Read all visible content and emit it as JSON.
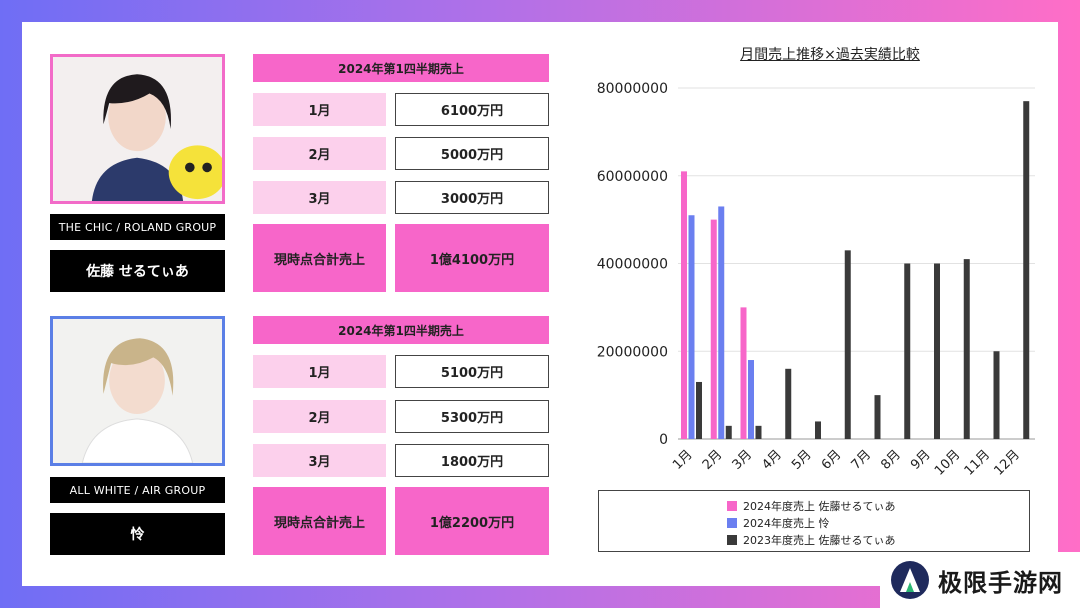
{
  "people": [
    {
      "group": "THE CHIC / ROLAND GROUP",
      "name": "佐藤 せるてぃあ",
      "quarter_header": "2024年第1四半期売上",
      "months": [
        {
          "label": "1月",
          "value": "6100万円"
        },
        {
          "label": "2月",
          "value": "5000万円"
        },
        {
          "label": "3月",
          "value": "3000万円"
        }
      ],
      "total_label": "現時点合計売上",
      "total_value": "1億4100万円",
      "photo_color": "#f26bc8"
    },
    {
      "group": "ALL WHITE / AIR GROUP",
      "name": "怜",
      "quarter_header": "2024年第1四半期売上",
      "months": [
        {
          "label": "1月",
          "value": "5100万円"
        },
        {
          "label": "2月",
          "value": "5300万円"
        },
        {
          "label": "3月",
          "value": "1800万円"
        }
      ],
      "total_label": "現時点合計売上",
      "total_value": "1億2200万円",
      "photo_color": "#5b7fe6"
    }
  ],
  "chart_data": {
    "type": "bar",
    "title": "月間売上推移×過去実績比較",
    "categories": [
      "1月",
      "2月",
      "3月",
      "4月",
      "5月",
      "6月",
      "7月",
      "8月",
      "9月",
      "10月",
      "11月",
      "12月"
    ],
    "series": [
      {
        "name": "2024年度売上 佐藤せるてぃあ",
        "color": "#f766c9",
        "values": [
          61000000,
          50000000,
          30000000,
          null,
          null,
          null,
          null,
          null,
          null,
          null,
          null,
          null
        ]
      },
      {
        "name": "2024年度売上 怜",
        "color": "#6b7ff0",
        "values": [
          51000000,
          53000000,
          18000000,
          null,
          null,
          null,
          null,
          null,
          null,
          null,
          null,
          null
        ]
      },
      {
        "name": "2023年度売上 佐藤せるてぃあ",
        "color": "#3a3a3a",
        "values": [
          13000000,
          3000000,
          3000000,
          16000000,
          4000000,
          43000000,
          10000000,
          40000000,
          40000000,
          41000000,
          20000000,
          77000000
        ]
      }
    ],
    "yticks": [
      0,
      20000000,
      40000000,
      60000000,
      80000000
    ],
    "ylim": [
      0,
      80000000
    ],
    "grid": true,
    "legend_position": "bottom"
  },
  "watermark": {
    "text": "极限手游网"
  }
}
